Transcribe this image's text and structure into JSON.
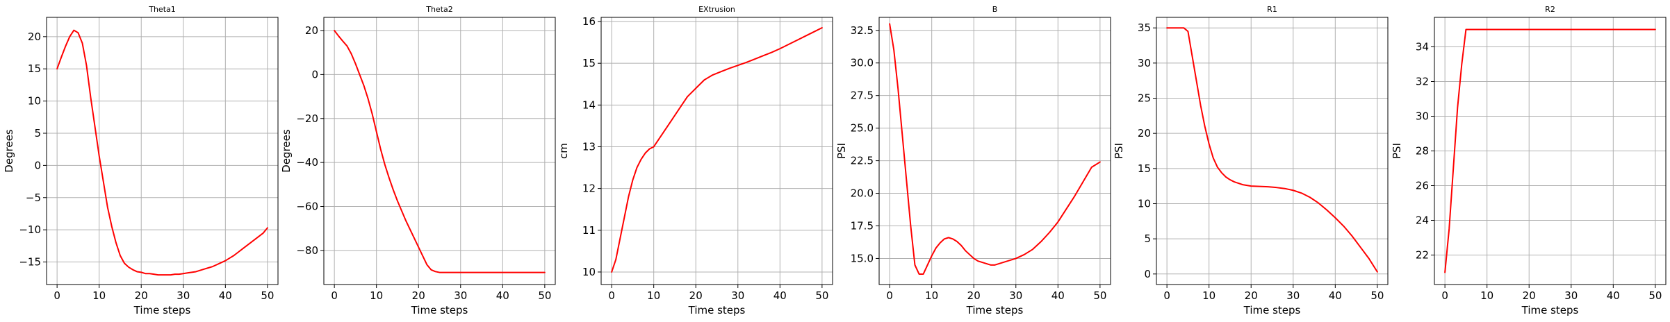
{
  "chart_data": [
    {
      "type": "line",
      "title": "Theta1",
      "xlabel": "Time steps",
      "ylabel": "Degrees",
      "xlim": [
        -2.5,
        52.5
      ],
      "ylim": [
        -18.5,
        23.0
      ],
      "xticks": [
        0,
        10,
        20,
        30,
        40,
        50
      ],
      "yticks": [
        -15,
        -10,
        -5,
        0,
        5,
        10,
        15,
        20
      ],
      "grid": true,
      "series": [
        {
          "color": "#ff0000",
          "x": [
            0,
            1,
            2,
            3,
            4,
            5,
            6,
            7,
            8,
            9,
            10,
            11,
            12,
            13,
            14,
            15,
            16,
            17,
            18,
            19,
            20,
            21,
            22,
            23,
            24,
            25,
            26,
            27,
            28,
            29,
            30,
            31,
            32,
            33,
            34,
            35,
            36,
            37,
            38,
            39,
            40,
            41,
            42,
            43,
            44,
            45,
            46,
            47,
            48,
            49,
            50
          ],
          "values": [
            15.0,
            16.8,
            18.5,
            20.0,
            21.0,
            20.6,
            19.0,
            15.5,
            10.5,
            6.0,
            1.5,
            -2.5,
            -6.5,
            -9.5,
            -12.0,
            -14.0,
            -15.2,
            -15.8,
            -16.2,
            -16.5,
            -16.6,
            -16.8,
            -16.8,
            -16.9,
            -17.0,
            -17.0,
            -17.0,
            -17.0,
            -16.9,
            -16.9,
            -16.8,
            -16.7,
            -16.6,
            -16.5,
            -16.3,
            -16.1,
            -15.9,
            -15.7,
            -15.4,
            -15.1,
            -14.8,
            -14.4,
            -14.0,
            -13.5,
            -13.0,
            -12.5,
            -12.0,
            -11.5,
            -11.0,
            -10.5,
            -9.7
          ]
        }
      ]
    },
    {
      "type": "line",
      "title": "Theta2",
      "xlabel": "Time steps",
      "ylabel": "Degrees",
      "xlim": [
        -2.5,
        52.5
      ],
      "ylim": [
        -95.5,
        26.0
      ],
      "xticks": [
        0,
        10,
        20,
        30,
        40,
        50
      ],
      "yticks": [
        -80,
        -60,
        -40,
        -20,
        0,
        20
      ],
      "grid": true,
      "series": [
        {
          "color": "#ff0000",
          "x": [
            0,
            1,
            2,
            3,
            4,
            5,
            6,
            7,
            8,
            9,
            10,
            11,
            12,
            13,
            14,
            15,
            16,
            17,
            18,
            19,
            20,
            21,
            22,
            23,
            24,
            25,
            26,
            27,
            28,
            29,
            30,
            35,
            40,
            45,
            50
          ],
          "values": [
            20.0,
            17.5,
            15.2,
            13.0,
            9.5,
            5.0,
            0.0,
            -5.0,
            -11.0,
            -18.0,
            -26.0,
            -34.0,
            -41.0,
            -47.0,
            -52.5,
            -57.5,
            -62.0,
            -66.5,
            -70.5,
            -74.5,
            -78.5,
            -82.5,
            -86.5,
            -88.8,
            -89.6,
            -90.0,
            -90.0,
            -90.0,
            -90.0,
            -90.0,
            -90.0,
            -90.0,
            -90.0,
            -90.0,
            -90.0
          ]
        }
      ]
    },
    {
      "type": "line",
      "title": "EXtrusion",
      "xlabel": "Time steps",
      "ylabel": "cm",
      "xlim": [
        -2.5,
        52.5
      ],
      "ylim": [
        9.7,
        16.1
      ],
      "xticks": [
        0,
        10,
        20,
        30,
        40,
        50
      ],
      "yticks": [
        10,
        11,
        12,
        13,
        14,
        15,
        16
      ],
      "grid": true,
      "series": [
        {
          "color": "#ff0000",
          "x": [
            0,
            1,
            2,
            3,
            4,
            5,
            6,
            7,
            8,
            9,
            10,
            12,
            14,
            16,
            18,
            20,
            22,
            24,
            26,
            28,
            30,
            32,
            34,
            36,
            38,
            40,
            42,
            44,
            46,
            48,
            50
          ],
          "values": [
            10.0,
            10.3,
            10.8,
            11.3,
            11.8,
            12.2,
            12.5,
            12.7,
            12.85,
            12.95,
            13.0,
            13.3,
            13.6,
            13.9,
            14.2,
            14.4,
            14.6,
            14.72,
            14.8,
            14.88,
            14.95,
            15.02,
            15.1,
            15.18,
            15.26,
            15.35,
            15.45,
            15.55,
            15.65,
            15.75,
            15.85
          ]
        }
      ]
    },
    {
      "type": "line",
      "title": "B",
      "xlabel": "Time steps",
      "ylabel": "PSI",
      "xlim": [
        -2.5,
        52.5
      ],
      "ylim": [
        13.0,
        33.5
      ],
      "xticks": [
        0,
        10,
        20,
        30,
        40,
        50
      ],
      "yticks": [
        15.0,
        17.5,
        20.0,
        22.5,
        25.0,
        27.5,
        30.0,
        32.5
      ],
      "ytick_labels": [
        "15.0",
        "17.5",
        "20.0",
        "22.5",
        "25.0",
        "27.5",
        "30.0",
        "32.5"
      ],
      "grid": true,
      "series": [
        {
          "color": "#ff0000",
          "x": [
            0,
            1,
            2,
            3,
            4,
            5,
            6,
            7,
            8,
            9,
            10,
            11,
            12,
            13,
            14,
            15,
            16,
            17,
            18,
            19,
            20,
            21,
            22,
            23,
            24,
            25,
            26,
            27,
            28,
            30,
            32,
            34,
            36,
            38,
            40,
            42,
            44,
            46,
            48,
            50
          ],
          "values": [
            33.0,
            31.0,
            28.0,
            24.5,
            21.0,
            17.5,
            14.5,
            13.8,
            13.8,
            14.5,
            15.2,
            15.8,
            16.2,
            16.5,
            16.6,
            16.5,
            16.3,
            16.0,
            15.6,
            15.3,
            15.0,
            14.8,
            14.7,
            14.6,
            14.5,
            14.5,
            14.6,
            14.7,
            14.8,
            15.0,
            15.3,
            15.7,
            16.3,
            17.0,
            17.8,
            18.8,
            19.8,
            20.9,
            22.0,
            22.4
          ]
        }
      ]
    },
    {
      "type": "line",
      "title": "R1",
      "xlabel": "Time steps",
      "ylabel": "PSI",
      "xlim": [
        -2.5,
        52.5
      ],
      "ylim": [
        -1.5,
        36.5
      ],
      "xticks": [
        0,
        10,
        20,
        30,
        40,
        50
      ],
      "yticks": [
        0,
        5,
        10,
        15,
        20,
        25,
        30,
        35
      ],
      "grid": true,
      "series": [
        {
          "color": "#ff0000",
          "x": [
            0,
            1,
            2,
            3,
            4,
            5,
            6,
            7,
            8,
            9,
            10,
            11,
            12,
            13,
            14,
            15,
            16,
            17,
            18,
            20,
            22,
            24,
            26,
            28,
            30,
            32,
            34,
            36,
            38,
            40,
            42,
            44,
            46,
            48,
            50
          ],
          "values": [
            35.0,
            35.0,
            35.0,
            35.0,
            35.0,
            34.5,
            31.0,
            27.5,
            24.0,
            21.0,
            18.5,
            16.5,
            15.2,
            14.4,
            13.8,
            13.4,
            13.1,
            12.9,
            12.7,
            12.5,
            12.45,
            12.4,
            12.3,
            12.15,
            11.9,
            11.5,
            10.9,
            10.1,
            9.1,
            8.0,
            6.8,
            5.4,
            3.8,
            2.2,
            0.3
          ]
        }
      ]
    },
    {
      "type": "line",
      "title": "R2",
      "xlabel": "Time steps",
      "ylabel": "PSI",
      "xlim": [
        -2.5,
        52.5
      ],
      "ylim": [
        20.3,
        35.7
      ],
      "xticks": [
        0,
        10,
        20,
        30,
        40,
        50
      ],
      "yticks": [
        22,
        24,
        26,
        28,
        30,
        32,
        34
      ],
      "grid": true,
      "series": [
        {
          "color": "#ff0000",
          "x": [
            0,
            1,
            2,
            3,
            4,
            5,
            6,
            10,
            20,
            30,
            40,
            50
          ],
          "values": [
            21.0,
            23.5,
            27.0,
            30.5,
            33.0,
            35.0,
            35.0,
            35.0,
            35.0,
            35.0,
            35.0,
            35.0
          ]
        }
      ]
    }
  ]
}
